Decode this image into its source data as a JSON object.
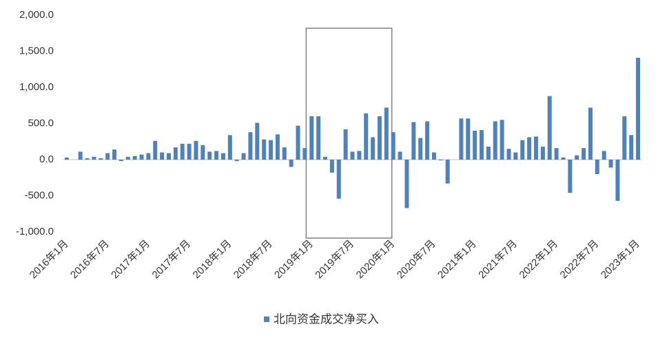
{
  "chart_data": {
    "type": "bar",
    "categories": [
      "2016年1月",
      null,
      null,
      null,
      null,
      null,
      "2016年7月",
      null,
      null,
      null,
      null,
      null,
      "2017年1月",
      null,
      null,
      null,
      null,
      null,
      "2017年7月",
      null,
      null,
      null,
      null,
      null,
      "2018年1月",
      null,
      null,
      null,
      null,
      null,
      "2018年7月",
      null,
      null,
      null,
      null,
      null,
      "2019年1月",
      null,
      null,
      null,
      null,
      null,
      "2019年7月",
      null,
      null,
      null,
      null,
      null,
      "2020年1月",
      null,
      null,
      null,
      null,
      null,
      "2020年7月",
      null,
      null,
      null,
      null,
      null,
      "2021年1月",
      null,
      null,
      null,
      null,
      null,
      "2021年7月",
      null,
      null,
      null,
      null,
      null,
      "2022年1月",
      null,
      null,
      null,
      null,
      null,
      "2022年7月",
      null,
      null,
      null,
      null,
      null,
      "2023年1月"
    ],
    "series": [
      {
        "name": "北向资金成交净买入",
        "color": "#4f81bd",
        "values": [
          30,
          0,
          110,
          20,
          40,
          20,
          90,
          140,
          -20,
          40,
          50,
          70,
          90,
          260,
          100,
          90,
          170,
          220,
          220,
          260,
          200,
          110,
          120,
          90,
          340,
          -20,
          90,
          380,
          510,
          280,
          270,
          350,
          170,
          -100,
          470,
          160,
          600,
          600,
          40,
          -180,
          -540,
          420,
          110,
          120,
          640,
          310,
          600,
          720,
          380,
          110,
          -670,
          520,
          300,
          530,
          100,
          -10,
          -330,
          0,
          570,
          570,
          400,
          410,
          180,
          530,
          550,
          150,
          100,
          270,
          310,
          320,
          180,
          880,
          160,
          30,
          -460,
          60,
          160,
          720,
          -200,
          120,
          -110,
          -570,
          600,
          340,
          1410
        ]
      }
    ],
    "ylim": [
      -1000,
      2000
    ],
    "yticks": [
      {
        "value": -1000,
        "label": "-1,000.0"
      },
      {
        "value": -500,
        "label": "-500.0"
      },
      {
        "value": 0,
        "label": "0.0"
      },
      {
        "value": 500,
        "label": "500.0"
      },
      {
        "value": 1000,
        "label": "1,000.0"
      },
      {
        "value": 1500,
        "label": "1,500.0"
      },
      {
        "value": 2000,
        "label": "2,000.0"
      }
    ],
    "legend": "bottom"
  }
}
